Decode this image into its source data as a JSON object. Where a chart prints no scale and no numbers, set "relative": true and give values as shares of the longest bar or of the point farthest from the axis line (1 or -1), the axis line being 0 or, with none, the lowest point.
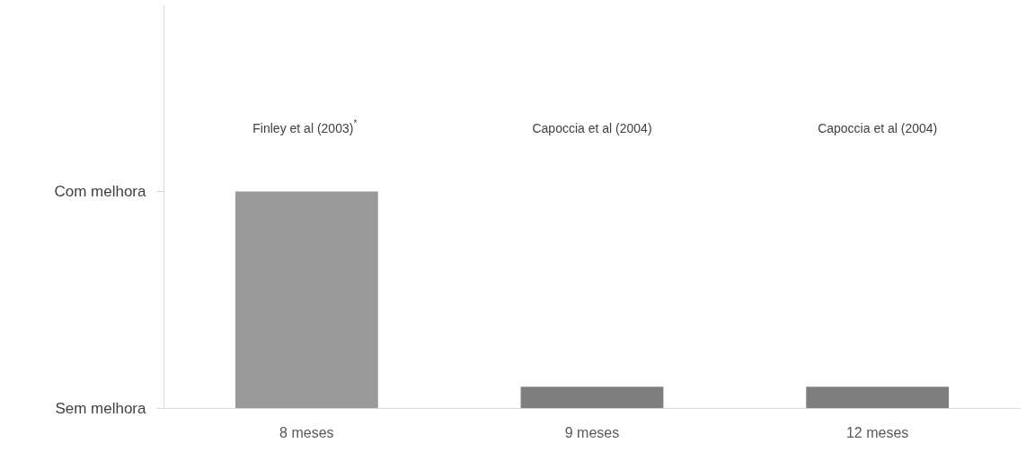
{
  "chart_data": {
    "type": "bar",
    "relative": true,
    "categories": [
      "8 meses",
      "9 meses",
      "12 meses"
    ],
    "values": [
      1,
      0.1,
      0.1
    ],
    "colors": [
      "#9a9a9a",
      "#7f7f7f",
      "#7f7f7f"
    ],
    "annotations": [
      "Sem melhora",
      "Com melhora",
      "Finley et al (2003)$^{*}$",
      "Capoccia et al (2004)",
      "Capoccia et al (2004)"
    ]
  }
}
